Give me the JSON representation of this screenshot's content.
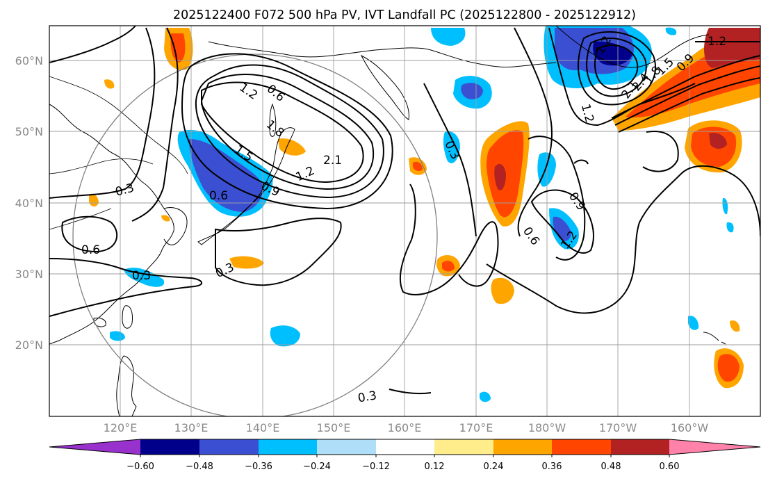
{
  "title": "2025122400 F072 500 hPa PV, IVT Landfall PC (2025122800 - 2025122912)",
  "map": {
    "lat_ticks": [
      "60°N",
      "50°N",
      "40°N",
      "30°N",
      "20°N"
    ],
    "lon_ticks": [
      "120°E",
      "130°E",
      "140°E",
      "150°E",
      "160°E",
      "170°E",
      "180°W",
      "170°W",
      "160°W"
    ],
    "contour_labels": [
      "1.2",
      "0.6",
      "1.8",
      "1.5",
      "2.1",
      "1.2",
      "0.9",
      "0.6",
      "0.3",
      "0.6",
      "0.3",
      "0.3",
      "0.3",
      "0.3",
      "0.9",
      "0.6",
      "1.2",
      "1.2",
      "1.2",
      "2.1",
      "2.4",
      "1.8",
      "1.5",
      "0.9",
      "1.2"
    ]
  },
  "colorbar": {
    "colors": [
      "#9932cc",
      "#00008b",
      "#3b4fd3",
      "#00bfff",
      "#afdff8",
      "#ffffff",
      "#ffec8b",
      "#ffa500",
      "#ff4500",
      "#b22222",
      "#ff82ab"
    ],
    "tick_labels": [
      "−0.60",
      "−0.48",
      "−0.36",
      "−0.24",
      "−0.12",
      "0.12",
      "0.24",
      "0.36",
      "0.48",
      "0.60"
    ]
  }
}
